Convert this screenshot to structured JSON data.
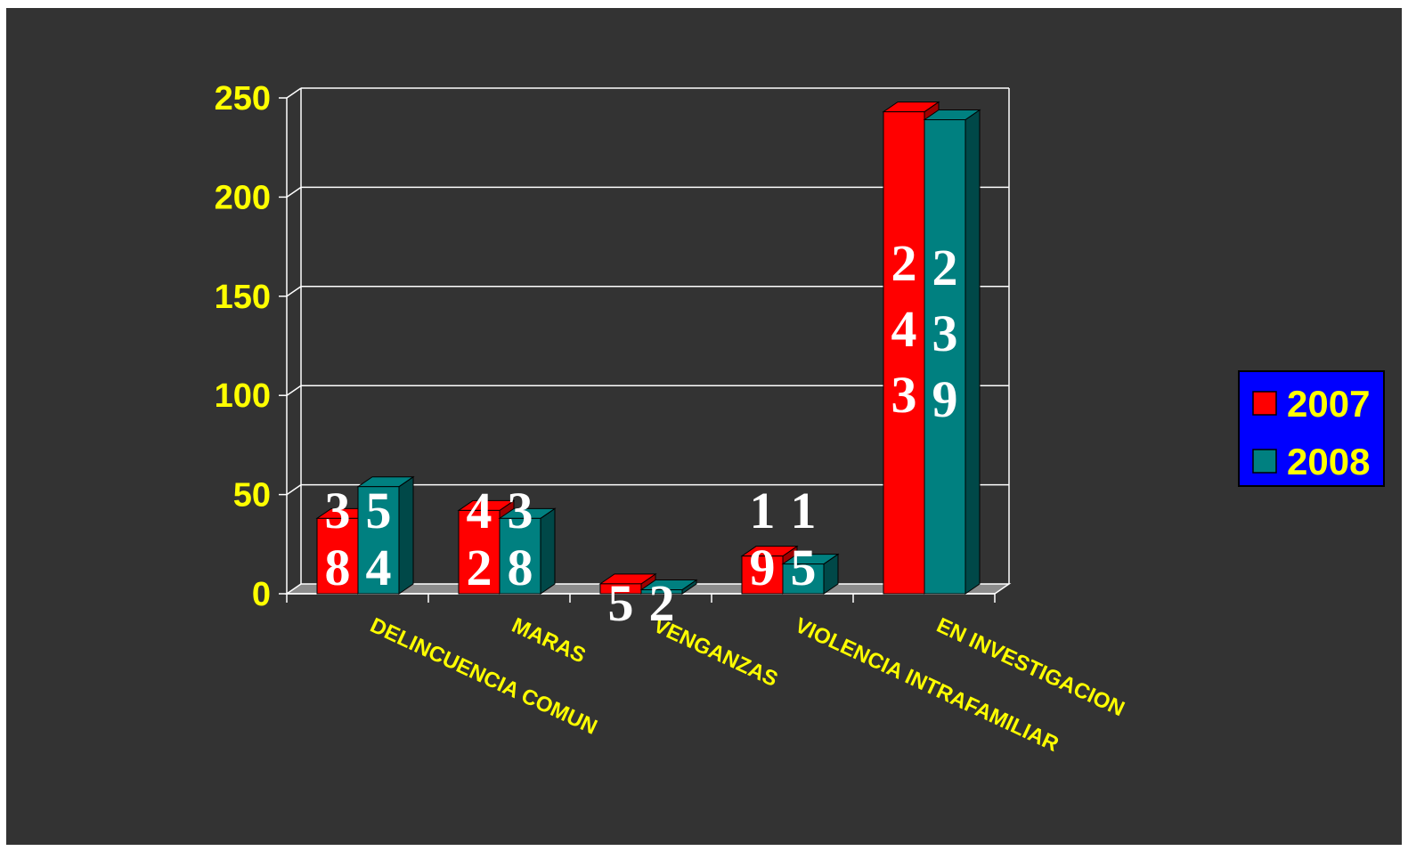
{
  "colors": {
    "background": "#333333",
    "page_border": "#ffffff",
    "text_yellow": "#ffff00",
    "label_white": "#ffffff",
    "grid": "#ffffff",
    "floor": "#8c8c8c",
    "legend_bg": "#0000ff"
  },
  "chart_data": {
    "type": "bar",
    "style": "3d-clustered-column",
    "categories": [
      "DELINCUENCIA COMUN",
      "MARAS",
      "VENGANZAS",
      "VIOLENCIA INTRAFAMILIAR",
      "EN INVESTIGACION"
    ],
    "series": [
      {
        "name": "2007",
        "color": "#ff0000",
        "side_color": "#a00000",
        "values": [
          38,
          42,
          5,
          19,
          243
        ],
        "labels": [
          "38",
          "42",
          "5",
          "19",
          "243"
        ]
      },
      {
        "name": "2008",
        "color": "#008080",
        "side_color": "#004848",
        "values": [
          54,
          38,
          2,
          15,
          239
        ],
        "labels": [
          "54",
          "38",
          "2",
          "15",
          "239"
        ]
      }
    ],
    "ylim": [
      0,
      250
    ],
    "yticks": [
      "0",
      "50",
      "100",
      "150",
      "200",
      "250"
    ],
    "grid": true,
    "legend_position": "right",
    "title": "",
    "xlabel": "",
    "ylabel": ""
  }
}
